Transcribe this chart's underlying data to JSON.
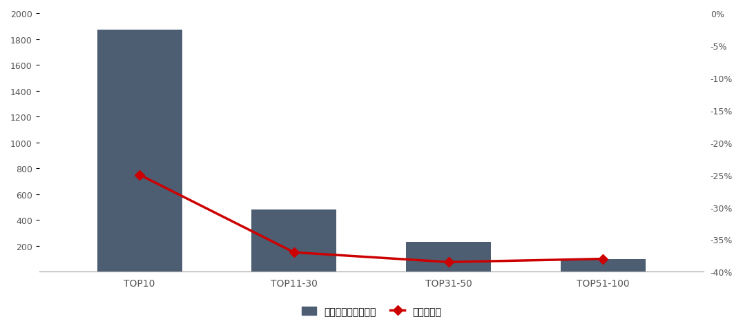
{
  "categories": [
    "TOP10",
    "TOP11-30",
    "TOP31-50",
    "TOP51-100"
  ],
  "bar_values": [
    1870,
    480,
    230,
    100
  ],
  "line_values": [
    -25.0,
    -37.0,
    -38.5,
    -38.0
  ],
  "bar_color": "#4D5E72",
  "line_color": "#CC0000",
  "left_ylim": [
    0,
    2000
  ],
  "left_yticks": [
    200,
    400,
    600,
    800,
    1000,
    1200,
    1400,
    1600,
    1800,
    2000
  ],
  "right_ylim": [
    -40,
    0
  ],
  "right_yticks": [
    0,
    -5,
    -10,
    -15,
    -20,
    -25,
    -30,
    -35,
    -40
  ],
  "bar_legend": "销售额均値（亿元）",
  "line_legend": "同比增长率",
  "background_color": "#ffffff",
  "figsize": [
    10.76,
    4.77
  ],
  "dpi": 100,
  "spine_color": "#aaaaaa",
  "tick_color": "#555555",
  "axis_label_color": "#555555"
}
